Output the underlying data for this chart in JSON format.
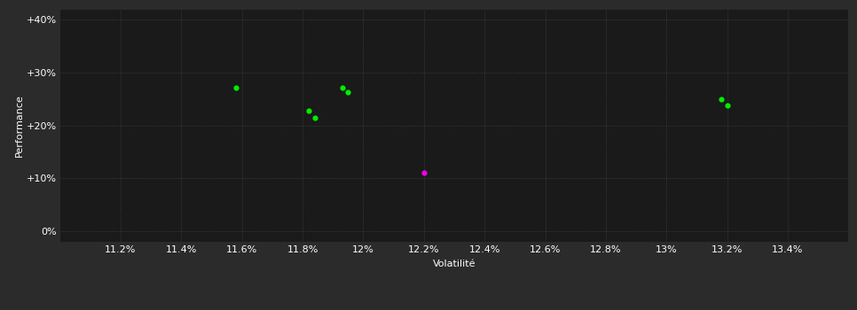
{
  "background_color": "#2b2b2b",
  "plot_bg_color": "#1a1a1a",
  "grid_color": "#444444",
  "text_color": "#ffffff",
  "xlabel": "Volatilité",
  "ylabel": "Performance",
  "xlim": [
    11.0,
    13.6
  ],
  "ylim": [
    -2,
    42
  ],
  "xticks": [
    11.2,
    11.4,
    11.6,
    11.8,
    12.0,
    12.2,
    12.4,
    12.6,
    12.8,
    13.0,
    13.2,
    13.4
  ],
  "xtick_labels": [
    "11.2%",
    "11.4%",
    "11.6%",
    "11.8%",
    "12%",
    "12.2%",
    "12.4%",
    "12.6%",
    "12.8%",
    "13%",
    "13.2%",
    "13.4%"
  ],
  "yticks": [
    0,
    10,
    20,
    30,
    40
  ],
  "ytick_labels": [
    "0%",
    "+10%",
    "+20%",
    "+30%",
    "+40%"
  ],
  "green_points": [
    [
      11.58,
      27.2
    ],
    [
      11.82,
      22.8
    ],
    [
      11.84,
      21.5
    ],
    [
      11.93,
      27.2
    ],
    [
      11.95,
      26.3
    ],
    [
      13.18,
      25.0
    ],
    [
      13.2,
      23.8
    ]
  ],
  "magenta_points": [
    [
      12.2,
      11.0
    ]
  ],
  "green_color": "#00ee00",
  "magenta_color": "#ee00ee",
  "point_size": 20,
  "figsize": [
    9.66,
    3.5
  ],
  "dpi": 100
}
